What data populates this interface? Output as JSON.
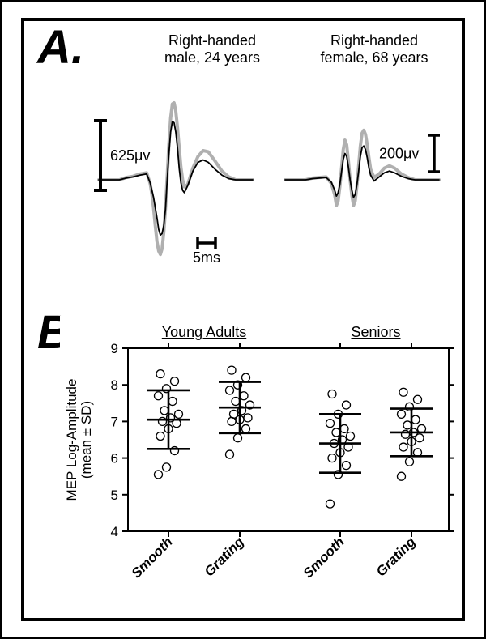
{
  "panelA": {
    "label": "A.",
    "title_left": "Right-handed\nmale, 24 years",
    "title_right": "Right-handed\nfemale, 68 years",
    "scale_left_label": "625μv",
    "scale_right_label": "200μv",
    "time_scale_label": "5ms",
    "trace_left": {
      "smooth_color": "#000000",
      "grating_color": "#b0b0b0",
      "smooth_linewidth": 1.8,
      "grating_linewidth": 4.0,
      "smooth_points": [
        [
          0,
          0.0
        ],
        [
          8,
          0.0
        ],
        [
          16,
          0.0
        ],
        [
          24,
          0.0
        ],
        [
          32,
          0.03
        ],
        [
          40,
          0.05
        ],
        [
          48,
          0.08
        ],
        [
          56,
          0.1
        ],
        [
          60,
          -0.05
        ],
        [
          64,
          -0.3
        ],
        [
          68,
          -0.65
        ],
        [
          70,
          -0.85
        ],
        [
          72,
          -0.95
        ],
        [
          74,
          -0.92
        ],
        [
          76,
          -0.78
        ],
        [
          78,
          -0.5
        ],
        [
          80,
          0.0
        ],
        [
          82,
          0.45
        ],
        [
          84,
          0.82
        ],
        [
          86,
          1.0
        ],
        [
          88,
          0.98
        ],
        [
          90,
          0.82
        ],
        [
          92,
          0.55
        ],
        [
          94,
          0.2
        ],
        [
          96,
          -0.05
        ],
        [
          98,
          -0.18
        ],
        [
          100,
          -0.22
        ],
        [
          104,
          -0.1
        ],
        [
          110,
          0.15
        ],
        [
          116,
          0.3
        ],
        [
          122,
          0.34
        ],
        [
          128,
          0.3
        ],
        [
          136,
          0.18
        ],
        [
          144,
          0.08
        ],
        [
          152,
          0.02
        ],
        [
          160,
          0.0
        ],
        [
          170,
          0.0
        ],
        [
          180,
          0.0
        ]
      ],
      "grating_points": [
        [
          0,
          0.0
        ],
        [
          8,
          0.0
        ],
        [
          16,
          0.0
        ],
        [
          24,
          0.0
        ],
        [
          32,
          0.04
        ],
        [
          40,
          0.06
        ],
        [
          48,
          0.1
        ],
        [
          56,
          0.12
        ],
        [
          60,
          -0.06
        ],
        [
          62,
          -0.24
        ],
        [
          64,
          -0.48
        ],
        [
          66,
          -0.78
        ],
        [
          68,
          -1.06
        ],
        [
          70,
          -1.22
        ],
        [
          72,
          -1.28
        ],
        [
          74,
          -1.18
        ],
        [
          76,
          -0.9
        ],
        [
          78,
          -0.48
        ],
        [
          80,
          0.06
        ],
        [
          82,
          0.62
        ],
        [
          84,
          1.06
        ],
        [
          86,
          1.3
        ],
        [
          88,
          1.32
        ],
        [
          90,
          1.18
        ],
        [
          92,
          0.9
        ],
        [
          94,
          0.55
        ],
        [
          96,
          0.22
        ],
        [
          98,
          0.0
        ],
        [
          100,
          -0.12
        ],
        [
          104,
          -0.08
        ],
        [
          110,
          0.2
        ],
        [
          116,
          0.4
        ],
        [
          122,
          0.5
        ],
        [
          128,
          0.48
        ],
        [
          136,
          0.32
        ],
        [
          144,
          0.15
        ],
        [
          152,
          0.05
        ],
        [
          160,
          0.0
        ],
        [
          170,
          0.0
        ],
        [
          180,
          0.0
        ]
      ]
    },
    "trace_right": {
      "smooth_color": "#000000",
      "grating_color": "#b0b0b0",
      "smooth_linewidth": 1.8,
      "grating_linewidth": 4.0,
      "smooth_points": [
        [
          0,
          0.0
        ],
        [
          8,
          0.0
        ],
        [
          16,
          0.0
        ],
        [
          24,
          0.0
        ],
        [
          32,
          0.02
        ],
        [
          40,
          0.03
        ],
        [
          48,
          0.04
        ],
        [
          54,
          -0.04
        ],
        [
          58,
          -0.18
        ],
        [
          60,
          -0.28
        ],
        [
          62,
          -0.22
        ],
        [
          64,
          -0.08
        ],
        [
          66,
          0.14
        ],
        [
          68,
          0.35
        ],
        [
          70,
          0.45
        ],
        [
          72,
          0.4
        ],
        [
          74,
          0.22
        ],
        [
          76,
          0.0
        ],
        [
          78,
          -0.18
        ],
        [
          80,
          -0.3
        ],
        [
          82,
          -0.25
        ],
        [
          84,
          -0.08
        ],
        [
          86,
          0.15
        ],
        [
          88,
          0.4
        ],
        [
          90,
          0.55
        ],
        [
          92,
          0.58
        ],
        [
          94,
          0.52
        ],
        [
          96,
          0.38
        ],
        [
          98,
          0.2
        ],
        [
          100,
          0.08
        ],
        [
          104,
          -0.02
        ],
        [
          110,
          0.05
        ],
        [
          116,
          0.12
        ],
        [
          122,
          0.15
        ],
        [
          128,
          0.12
        ],
        [
          136,
          0.06
        ],
        [
          144,
          0.02
        ],
        [
          152,
          0.0
        ],
        [
          160,
          0.0
        ],
        [
          170,
          0.0
        ],
        [
          180,
          0.0
        ]
      ],
      "grating_points": [
        [
          0,
          0.0
        ],
        [
          8,
          0.0
        ],
        [
          16,
          0.0
        ],
        [
          24,
          0.0
        ],
        [
          32,
          0.03
        ],
        [
          40,
          0.04
        ],
        [
          48,
          0.05
        ],
        [
          54,
          -0.06
        ],
        [
          58,
          -0.26
        ],
        [
          60,
          -0.44
        ],
        [
          62,
          -0.36
        ],
        [
          64,
          -0.12
        ],
        [
          66,
          0.2
        ],
        [
          68,
          0.52
        ],
        [
          70,
          0.68
        ],
        [
          72,
          0.6
        ],
        [
          74,
          0.32
        ],
        [
          76,
          0.0
        ],
        [
          78,
          -0.26
        ],
        [
          80,
          -0.44
        ],
        [
          82,
          -0.36
        ],
        [
          84,
          -0.1
        ],
        [
          86,
          0.24
        ],
        [
          88,
          0.58
        ],
        [
          90,
          0.8
        ],
        [
          92,
          0.85
        ],
        [
          94,
          0.78
        ],
        [
          96,
          0.6
        ],
        [
          98,
          0.38
        ],
        [
          100,
          0.18
        ],
        [
          104,
          0.04
        ],
        [
          110,
          0.1
        ],
        [
          116,
          0.2
        ],
        [
          122,
          0.24
        ],
        [
          128,
          0.2
        ],
        [
          136,
          0.1
        ],
        [
          144,
          0.04
        ],
        [
          152,
          0.0
        ],
        [
          160,
          0.0
        ],
        [
          170,
          0.0
        ],
        [
          180,
          0.0
        ]
      ]
    },
    "left_scalebar_height": 86,
    "right_scalebar_height": 45,
    "time_scalebar_width": 22
  },
  "panelB": {
    "label": "B.",
    "group_labels": [
      "Young Adults",
      "Seniors"
    ],
    "condition_labels": [
      "Smooth",
      "Grating",
      "Smooth",
      "Grating"
    ],
    "y_axis_label": "MEP Log-Amplitude\n(mean ± SD)",
    "y_ticks": [
      4,
      5,
      6,
      7,
      8,
      9
    ],
    "ylim": [
      4,
      9
    ],
    "axis_color": "#000000",
    "background_color": "#ffffff",
    "marker_style": "circle-open",
    "marker_color": "#000000",
    "marker_size": 5,
    "errorbar_linewidth": 2.6,
    "errorcap_halfwidth": 26,
    "series": [
      {
        "x": 1,
        "mean": 7.05,
        "sd": 0.8,
        "points": [
          5.55,
          5.75,
          6.2,
          6.6,
          6.8,
          6.95,
          7.0,
          7.1,
          7.2,
          7.3,
          7.55,
          7.7,
          7.9,
          8.1,
          8.3
        ]
      },
      {
        "x": 2,
        "mean": 7.38,
        "sd": 0.7,
        "points": [
          6.1,
          6.55,
          6.8,
          7.0,
          7.05,
          7.1,
          7.2,
          7.3,
          7.45,
          7.55,
          7.7,
          7.85,
          8.0,
          8.2,
          8.4
        ]
      },
      {
        "x": 3,
        "mean": 6.4,
        "sd": 0.8,
        "points": [
          4.75,
          5.55,
          5.8,
          6.0,
          6.15,
          6.3,
          6.4,
          6.5,
          6.6,
          6.7,
          6.8,
          6.95,
          7.2,
          7.45,
          7.75
        ]
      },
      {
        "x": 4,
        "mean": 6.7,
        "sd": 0.65,
        "points": [
          5.5,
          5.9,
          6.15,
          6.3,
          6.45,
          6.55,
          6.65,
          6.7,
          6.8,
          6.9,
          7.05,
          7.2,
          7.4,
          7.6,
          7.8
        ]
      }
    ]
  }
}
